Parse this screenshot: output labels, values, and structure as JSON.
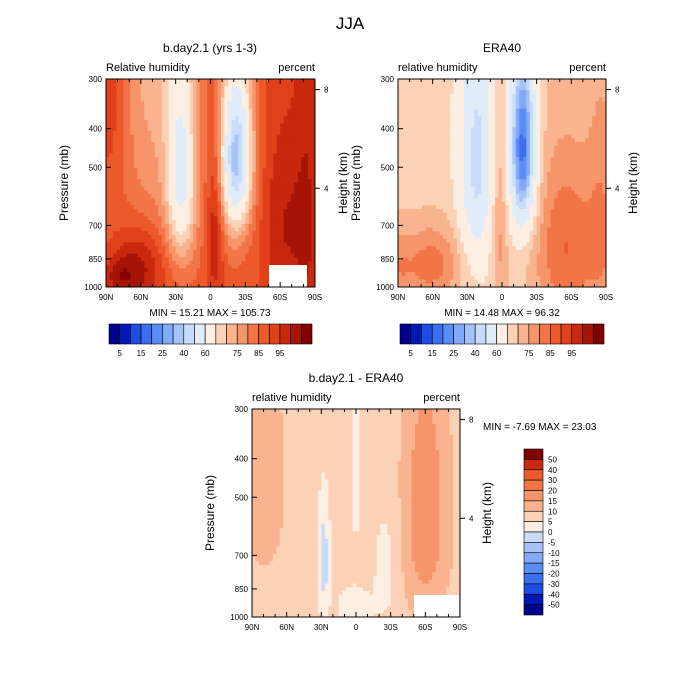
{
  "page_title": "JJA",
  "colors": {
    "fld": [
      "#00008f",
      "#0019b4",
      "#1e4be0",
      "#3c6ef0",
      "#5a8cf5",
      "#82aaf8",
      "#a5c3f8",
      "#c8dcfa",
      "#e1ecfb",
      "#fdeee2",
      "#fcd2b7",
      "#f9b48f",
      "#f69569",
      "#f27548",
      "#ec5a2c",
      "#e0401a",
      "#c8280e",
      "#a51405",
      "#800000"
    ],
    "diff": [
      "#00008f",
      "#0019b4",
      "#1e4be0",
      "#3c6ef0",
      "#5a8cf5",
      "#82aaf8",
      "#a5c3f8",
      "#c8dcfa",
      "#e1ecfb",
      "#fdeee2",
      "#fcd2b7",
      "#f9b48f",
      "#f69569",
      "#f27548",
      "#ec5a2c",
      "#e0401a",
      "#c8280e",
      "#a51405",
      "#800000"
    ]
  },
  "chart_data": [
    {
      "type": "heatmap",
      "id": "p1",
      "title": "b.day2.1 (yrs 1-3)",
      "left_label": "Relative humidity",
      "right_label": "percent",
      "ylabel": "Pressure (mb)",
      "y2label": "Height (km)",
      "x_ticks": [
        "90N",
        "60N",
        "30N",
        "0",
        "30S",
        "60S",
        "90S"
      ],
      "x_range": [
        90,
        -90
      ],
      "y_ticks": [
        "300",
        "400",
        "500",
        "700",
        "850",
        "1000"
      ],
      "y_values": [
        300,
        400,
        500,
        700,
        850,
        1000
      ],
      "y2_ticks": [
        "8",
        "4"
      ],
      "y2_values": [
        8,
        4
      ],
      "stats": "MIN =  15.21  MAX = 105.73",
      "colorbar_labels": [
        "5",
        "15",
        "25",
        "40",
        "60",
        "75",
        "85",
        "95"
      ],
      "field": "model"
    },
    {
      "type": "heatmap",
      "id": "p2",
      "title": "ERA40",
      "left_label": "relative humidity",
      "right_label": "percent",
      "ylabel": "Pressure (mb)",
      "y2label": "Height (km)",
      "x_ticks": [
        "90N",
        "60N",
        "30N",
        "0",
        "30S",
        "60S",
        "90S"
      ],
      "x_range": [
        90,
        -90
      ],
      "y_ticks": [
        "300",
        "400",
        "500",
        "700",
        "850",
        "1000"
      ],
      "y_values": [
        300,
        400,
        500,
        700,
        850,
        1000
      ],
      "y2_ticks": [
        "8",
        "4"
      ],
      "y2_values": [
        8,
        4
      ],
      "stats": "MIN =  14.48  MAX =  96.32",
      "colorbar_labels": [
        "5",
        "15",
        "25",
        "40",
        "60",
        "75",
        "85",
        "95"
      ],
      "field": "obs"
    },
    {
      "type": "heatmap",
      "id": "p3",
      "title": "b.day2.1 - ERA40",
      "left_label": "relative humidity",
      "right_label": "percent",
      "ylabel": "Pressure (mb)",
      "y2label": "Height (km)",
      "x_ticks": [
        "90N",
        "60N",
        "30N",
        "0",
        "30S",
        "60S",
        "90S"
      ],
      "x_range": [
        90,
        -90
      ],
      "y_ticks": [
        "300",
        "400",
        "500",
        "700",
        "850",
        "1000"
      ],
      "y_values": [
        300,
        400,
        500,
        700,
        850,
        1000
      ],
      "y2_ticks": [
        "8",
        "4"
      ],
      "y2_values": [
        8,
        4
      ],
      "stats": "MIN =  -7.69  MAX =  23.03",
      "colorbar_labels": [
        "50",
        "40",
        "30",
        "20",
        "15",
        "10",
        "5",
        "0",
        "-5",
        "-10",
        "-15",
        "-20",
        "-30",
        "-40",
        "-50"
      ],
      "field": "diff"
    }
  ]
}
